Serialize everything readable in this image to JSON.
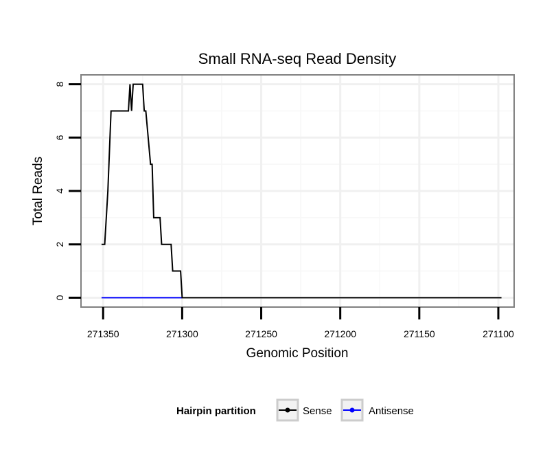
{
  "chart_data": {
    "type": "line",
    "title": "Small RNA-seq Read Density",
    "xlabel": "Genomic Position",
    "ylabel": "Total Reads",
    "xlim": [
      271364,
      271090
    ],
    "ylim": [
      -0.35,
      8.35
    ],
    "x_reversed": true,
    "x_ticks": [
      271350,
      271300,
      271250,
      271200,
      271150,
      271100
    ],
    "y_ticks": [
      0,
      2,
      4,
      6,
      8
    ],
    "grid": true,
    "legend": {
      "title": "Hairpin partition",
      "position": "bottom",
      "entries": [
        "Sense",
        "Antisense"
      ]
    },
    "series": [
      {
        "name": "Sense",
        "color": "#000000",
        "points": [
          [
            271351,
            2
          ],
          [
            271349,
            2
          ],
          [
            271347,
            4
          ],
          [
            271345,
            7
          ],
          [
            271344,
            7
          ],
          [
            271334,
            7
          ],
          [
            271333,
            8
          ],
          [
            271332,
            7
          ],
          [
            271331,
            8
          ],
          [
            271325,
            8
          ],
          [
            271324,
            7
          ],
          [
            271323,
            7
          ],
          [
            271320,
            5
          ],
          [
            271319,
            5
          ],
          [
            271318,
            3
          ],
          [
            271314,
            3
          ],
          [
            271313,
            2
          ],
          [
            271307,
            2
          ],
          [
            271306,
            1
          ],
          [
            271301,
            1
          ],
          [
            271300,
            0
          ],
          [
            271098,
            0
          ]
        ]
      },
      {
        "name": "Antisense",
        "color": "#0000ff",
        "points": [
          [
            271351,
            0
          ],
          [
            271300,
            0
          ]
        ]
      }
    ]
  }
}
